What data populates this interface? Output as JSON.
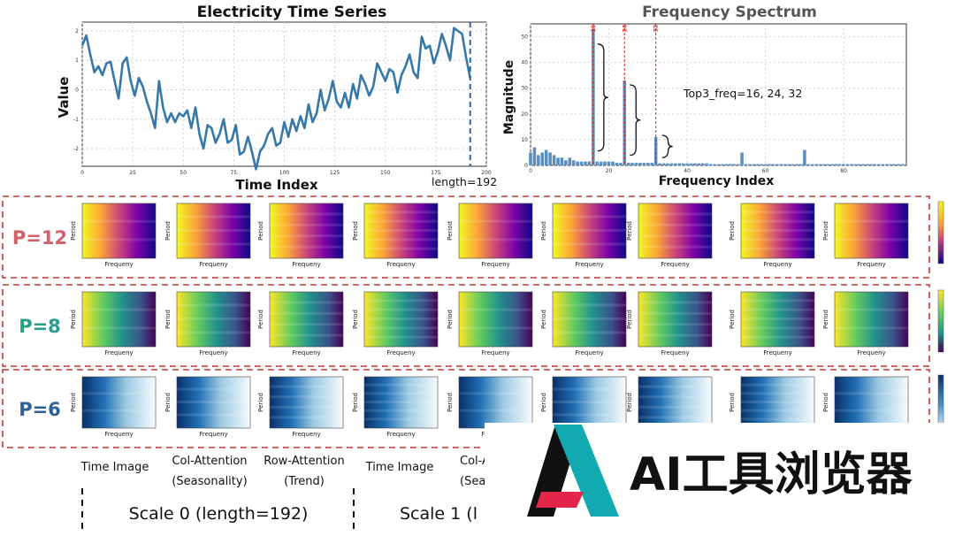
{
  "chart_data": [
    {
      "type": "line",
      "title": "Electricity Time Series",
      "xlabel": "Time Index",
      "ylabel": "Value",
      "xlim": [
        0,
        200
      ],
      "ylim": [
        -2.6,
        2.3
      ],
      "x_ticks": [
        "0",
        "25",
        "50",
        "75",
        "100",
        "125",
        "150",
        "175",
        "200"
      ],
      "y_ticks": [
        "2",
        "1",
        "0",
        "-1",
        "-2"
      ],
      "grid": true,
      "annotation": "length=192",
      "marker_x": 192,
      "series": [
        {
          "x": [
            0,
            2,
            4,
            6,
            8,
            10,
            12,
            14,
            16,
            18,
            20,
            22,
            24,
            26,
            28,
            30,
            32,
            34,
            36,
            38,
            40,
            42,
            44,
            46,
            48,
            50,
            52,
            54,
            56,
            58,
            60,
            62,
            64,
            66,
            68,
            70,
            72,
            74,
            76,
            78,
            80,
            82,
            84,
            86,
            88,
            90,
            92,
            94,
            96,
            98,
            100,
            102,
            104,
            106,
            108,
            110,
            112,
            114,
            116,
            118,
            120,
            122,
            124,
            126,
            128,
            130,
            132,
            134,
            136,
            138,
            140,
            142,
            144,
            146,
            148,
            150,
            152,
            154,
            156,
            158,
            160,
            162,
            164,
            166,
            168,
            170,
            172,
            174,
            176,
            178,
            180,
            182,
            184,
            186,
            188,
            190,
            192
          ],
          "values": [
            1.5,
            1.85,
            1.2,
            0.6,
            0.8,
            0.5,
            0.9,
            0.95,
            0.3,
            -0.3,
            0.9,
            1.1,
            0.3,
            -0.2,
            0.4,
            0.1,
            -0.4,
            -0.8,
            -1.3,
            0.3,
            -0.6,
            -1.1,
            -0.8,
            -1.1,
            -0.8,
            -0.9,
            -0.7,
            -1.3,
            -0.6,
            -1.5,
            -2.0,
            -1.2,
            -1.3,
            -1.8,
            -1.5,
            -1.0,
            -1.8,
            -1.7,
            -1.2,
            -2.2,
            -2.1,
            -1.6,
            -2.1,
            -2.7,
            -2.1,
            -1.9,
            -1.5,
            -1.3,
            -1.9,
            -1.8,
            -1.1,
            -1.6,
            -1.0,
            -1.4,
            -0.9,
            -1.3,
            -0.5,
            -1.1,
            -0.8,
            0.0,
            -0.7,
            -0.3,
            0.3,
            -0.4,
            -0.6,
            -0.1,
            -0.6,
            0.2,
            -0.3,
            0.5,
            0.2,
            -0.2,
            0.1,
            0.9,
            0.6,
            0.3,
            0.7,
            0.6,
            -0.1,
            0.5,
            0.8,
            1.2,
            0.6,
            0.4,
            1.8,
            1.4,
            1.5,
            0.9,
            1.3,
            1.9,
            1.5,
            1.0,
            2.1,
            2.0,
            1.9,
            1.1,
            0.4
          ]
        }
      ]
    },
    {
      "type": "bar",
      "title": "Frequency Spectrum",
      "xlabel": "Frequency Index",
      "ylabel": "Magnitude",
      "xlim": [
        0,
        96
      ],
      "ylim": [
        0,
        55
      ],
      "x_ticks": [
        "0",
        "20",
        "40",
        "60",
        "80"
      ],
      "y_ticks": [
        "0",
        "10",
        "20",
        "30",
        "40",
        "50"
      ],
      "grid": true,
      "annotation": "Top3_freq=16, 24, 32",
      "peak_labels": [
        "16",
        "24",
        "32"
      ],
      "x": [
        0,
        1,
        2,
        3,
        4,
        5,
        6,
        7,
        8,
        9,
        10,
        11,
        12,
        13,
        14,
        15,
        16,
        17,
        18,
        19,
        20,
        21,
        22,
        23,
        24,
        25,
        26,
        27,
        28,
        29,
        30,
        31,
        32,
        33,
        34,
        35,
        36,
        37,
        38,
        39,
        40,
        41,
        42,
        43,
        44,
        45,
        46,
        47,
        48,
        49,
        50,
        51,
        52,
        53,
        54,
        55,
        56,
        57,
        58,
        59,
        60,
        61,
        62,
        63,
        64,
        65,
        66,
        67,
        68,
        69,
        70,
        71,
        72,
        73,
        74,
        75,
        76,
        77,
        78,
        79,
        80,
        81,
        82,
        83,
        84,
        85,
        86,
        87,
        88,
        89,
        90,
        91,
        92,
        93,
        94,
        95
      ],
      "values": [
        5,
        7,
        4,
        5,
        6,
        5,
        4,
        3,
        3,
        2,
        3,
        2,
        1.5,
        1.5,
        1.5,
        1.5,
        53,
        1.5,
        1.5,
        1.5,
        1.5,
        1.5,
        1,
        1,
        33,
        1,
        1,
        1,
        1,
        1,
        1,
        1,
        11,
        0.8,
        0.8,
        0.8,
        0.8,
        0.8,
        0.8,
        0.8,
        0.8,
        0.8,
        0.8,
        0.8,
        0.8,
        0.8,
        0.5,
        0.5,
        0.5,
        0.5,
        0.5,
        0.5,
        0.5,
        0.5,
        5,
        0.5,
        0.5,
        0.5,
        0.5,
        0.5,
        0.5,
        0.5,
        0.5,
        0.5,
        0.5,
        0.5,
        0.5,
        0.5,
        0.5,
        0.5,
        6,
        0.5,
        0.5,
        0.5,
        0.5,
        0.5,
        0.5,
        0.5,
        0.5,
        0.5,
        0.5,
        0.5,
        0.5,
        0.5,
        0.5,
        0.5,
        0.5,
        0.5,
        0.5,
        0.5,
        0.5,
        0.5,
        0.5,
        0.5,
        0.5,
        0.5
      ]
    },
    {
      "type": "heatmap",
      "rows": [
        "P=12",
        "P=8",
        "P=6"
      ],
      "row_colors": [
        "#d0616b",
        "#2a9c8a",
        "#2e5f95"
      ],
      "panel_xlabel": "Frequeny",
      "panel_ylabel": "Period",
      "colormaps": [
        "plasma",
        "viridis",
        "blues"
      ]
    }
  ],
  "columns": {
    "labels": [
      {
        "line1": "Time Image",
        "line2": ""
      },
      {
        "line1": "Col-Attention",
        "line2": "(Seasonality)"
      },
      {
        "line1": "Row-Attention",
        "line2": "(Trend)"
      },
      {
        "line1": "Time Image",
        "line2": ""
      },
      {
        "line1": "Col-A",
        "line2": "(Seas"
      }
    ],
    "scales": [
      "Scale 0 (length=192)",
      "Scale 1 (l"
    ]
  },
  "watermark": {
    "text": "AI工具浏览器"
  }
}
